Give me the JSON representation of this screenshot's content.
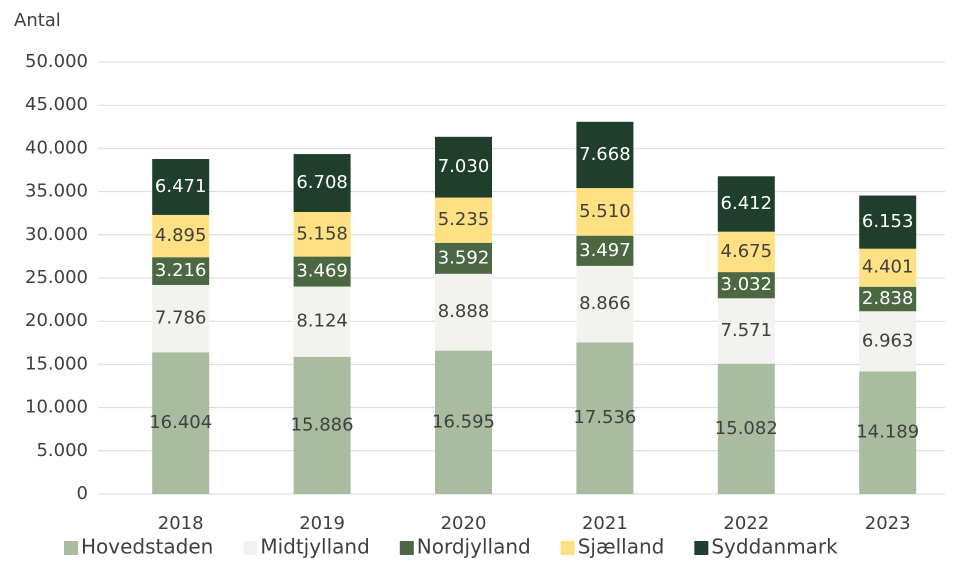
{
  "chart_data": {
    "type": "stacked_bar",
    "y_label": "Antal",
    "categories": [
      "2018",
      "2019",
      "2020",
      "2021",
      "2022",
      "2023"
    ],
    "series": [
      {
        "name": "Hovedstaden",
        "color": "#a9bca0",
        "values": [
          16404,
          15886,
          16595,
          17536,
          15082,
          14189
        ],
        "value_labels": [
          "16.404",
          "15.886",
          "16.595",
          "17.536",
          "15.082",
          "14.189"
        ]
      },
      {
        "name": "Midtjylland",
        "color": "#f2f2ee",
        "values": [
          7786,
          8124,
          8888,
          8866,
          7571,
          6963
        ],
        "value_labels": [
          "7.786",
          "8.124",
          "8.888",
          "8.866",
          "7.571",
          "6.963"
        ]
      },
      {
        "name": "Nordjylland",
        "color": "#4b6842",
        "values": [
          3216,
          3469,
          3592,
          3497,
          3032,
          2838
        ],
        "value_labels": [
          "3.216",
          "3.469",
          "3.592",
          "3.497",
          "3.032",
          "2.838"
        ]
      },
      {
        "name": "Sjælland",
        "color": "#ffe083",
        "values": [
          4895,
          5158,
          5235,
          5510,
          4675,
          4401
        ],
        "value_labels": [
          "4.895",
          "5.158",
          "5.235",
          "5.510",
          "4.675",
          "4.401"
        ]
      },
      {
        "name": "Syddanmark",
        "color": "#1f3e2c",
        "values": [
          6471,
          6708,
          7030,
          7668,
          6412,
          6153
        ],
        "value_labels": [
          "6.471",
          "6.708",
          "7.030",
          "7.668",
          "6.412",
          "6.153"
        ]
      }
    ],
    "ylim": [
      0,
      50000
    ],
    "yticks": [
      0,
      {
        "value": 5000,
        "label": "5.000"
      },
      {
        "value": 10000,
        "label": "10.000"
      },
      {
        "value": 15000,
        "label": "15.000"
      },
      {
        "value": 20000,
        "label": "20.000"
      },
      {
        "value": 25000,
        "label": "25.000"
      },
      {
        "value": 30000,
        "label": "30.000"
      },
      {
        "value": 35000,
        "label": "35.000"
      },
      {
        "value": 40000,
        "label": "40.000"
      },
      {
        "value": 45000,
        "label": "45.000"
      },
      {
        "value": 50000,
        "label": "50.000"
      }
    ],
    "grid": true,
    "legend": "bottom"
  }
}
